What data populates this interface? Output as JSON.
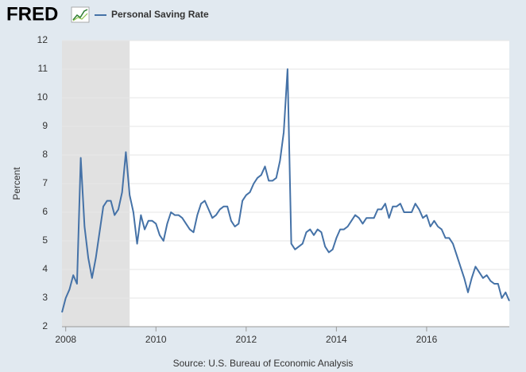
{
  "chart_data": {
    "type": "line",
    "logo": "FRED",
    "title": "Personal Saving Rate",
    "ylabel": "Percent",
    "source": "Source: U.S. Bureau of Economic Analysis",
    "x": [
      2007.917,
      2008,
      2008.083,
      2008.167,
      2008.25,
      2008.333,
      2008.417,
      2008.5,
      2008.583,
      2008.667,
      2008.75,
      2008.833,
      2008.917,
      2009,
      2009.083,
      2009.167,
      2009.25,
      2009.333,
      2009.417,
      2009.5,
      2009.583,
      2009.667,
      2009.75,
      2009.833,
      2009.917,
      2010,
      2010.083,
      2010.167,
      2010.25,
      2010.333,
      2010.417,
      2010.5,
      2010.583,
      2010.667,
      2010.75,
      2010.833,
      2010.917,
      2011,
      2011.083,
      2011.167,
      2011.25,
      2011.333,
      2011.417,
      2011.5,
      2011.583,
      2011.667,
      2011.75,
      2011.833,
      2011.917,
      2012,
      2012.083,
      2012.167,
      2012.25,
      2012.333,
      2012.417,
      2012.5,
      2012.583,
      2012.667,
      2012.75,
      2012.833,
      2012.917,
      2013,
      2013.083,
      2013.167,
      2013.25,
      2013.333,
      2013.417,
      2013.5,
      2013.583,
      2013.667,
      2013.75,
      2013.833,
      2013.917,
      2014,
      2014.083,
      2014.167,
      2014.25,
      2014.333,
      2014.417,
      2014.5,
      2014.583,
      2014.667,
      2014.75,
      2014.833,
      2014.917,
      2015,
      2015.083,
      2015.167,
      2015.25,
      2015.333,
      2015.417,
      2015.5,
      2015.583,
      2015.667,
      2015.75,
      2015.833,
      2015.917,
      2016,
      2016.083,
      2016.167,
      2016.25,
      2016.333,
      2016.417,
      2016.5,
      2016.583,
      2016.667,
      2016.75,
      2016.833,
      2016.917,
      2017,
      2017.083,
      2017.167,
      2017.25,
      2017.333,
      2017.417,
      2017.5,
      2017.583,
      2017.667,
      2017.75,
      2017.833
    ],
    "series": [
      {
        "name": "Personal Saving Rate",
        "color": "#4572a7",
        "values": [
          2.5,
          3.0,
          3.3,
          3.8,
          3.5,
          7.9,
          5.5,
          4.4,
          3.7,
          4.4,
          5.3,
          6.2,
          6.4,
          6.4,
          5.9,
          6.1,
          6.7,
          8.1,
          6.6,
          6.0,
          4.9,
          5.9,
          5.4,
          5.7,
          5.7,
          5.6,
          5.2,
          5.0,
          5.6,
          6.0,
          5.9,
          5.9,
          5.8,
          5.6,
          5.4,
          5.3,
          5.9,
          6.3,
          6.4,
          6.1,
          5.8,
          5.9,
          6.1,
          6.2,
          6.2,
          5.7,
          5.5,
          5.6,
          6.4,
          6.6,
          6.7,
          7.0,
          7.2,
          7.3,
          7.6,
          7.1,
          7.1,
          7.2,
          7.8,
          8.8,
          11.0,
          4.9,
          4.7,
          4.8,
          4.9,
          5.3,
          5.4,
          5.2,
          5.4,
          5.3,
          4.8,
          4.6,
          4.7,
          5.1,
          5.4,
          5.4,
          5.5,
          5.7,
          5.9,
          5.8,
          5.6,
          5.8,
          5.8,
          5.8,
          6.1,
          6.1,
          6.3,
          5.8,
          6.2,
          6.2,
          6.3,
          6.0,
          6.0,
          6.0,
          6.3,
          6.1,
          5.8,
          5.9,
          5.5,
          5.7,
          5.5,
          5.4,
          5.1,
          5.1,
          4.9,
          4.5,
          4.1,
          3.7,
          3.2,
          3.7,
          4.1,
          3.9,
          3.7,
          3.8,
          3.6,
          3.5,
          3.5,
          3.0,
          3.2,
          2.9
        ]
      }
    ],
    "recession": [
      2007.917,
      2009.417
    ],
    "xlim": [
      2007.917,
      2017.833
    ],
    "xticks": [
      2008,
      2010,
      2012,
      2014,
      2016
    ],
    "ylim": [
      2,
      12
    ],
    "yticks": [
      2,
      3,
      4,
      5,
      6,
      7,
      8,
      9,
      10,
      11,
      12
    ],
    "grid": true
  }
}
